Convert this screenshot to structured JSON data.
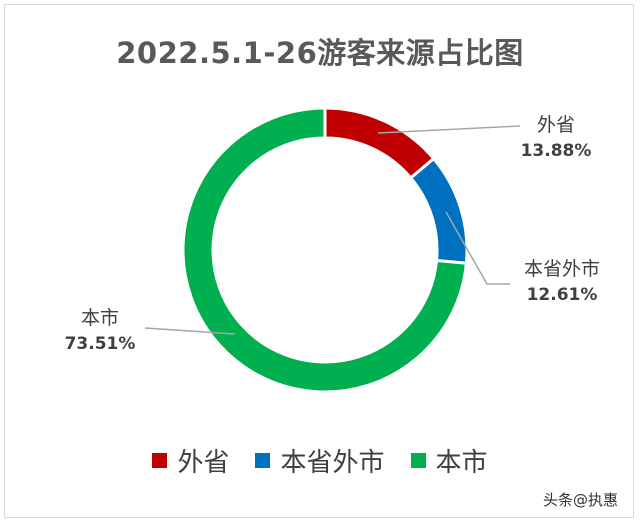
{
  "chart_data": {
    "type": "pie",
    "variant": "donut",
    "title": "2022.5.1-26游客来源占比图",
    "categories": [
      "外省",
      "本省外市",
      "本市"
    ],
    "values": [
      13.88,
      12.61,
      73.51
    ],
    "value_labels": [
      "13.88%",
      "12.61%",
      "73.51%"
    ],
    "colors": [
      "#c00000",
      "#0070c0",
      "#00b050"
    ],
    "legend": "bottom"
  },
  "watermark": "头条@执惠"
}
